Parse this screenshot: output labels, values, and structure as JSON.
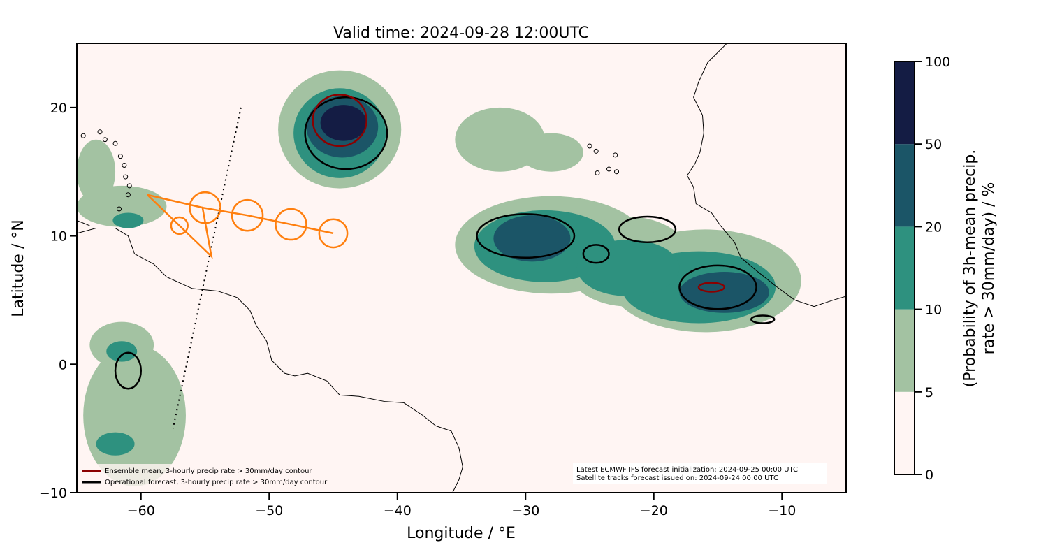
{
  "chart_data": {
    "type": "map",
    "title": "Valid time: 2024-09-28 12:00UTC",
    "xlabel": "Longitude / °E",
    "ylabel": "Latitude / °N",
    "xlim": [
      -65,
      -5
    ],
    "ylim": [
      -10,
      25
    ],
    "xticks": [
      -60,
      -50,
      -40,
      -30,
      -20,
      -10
    ],
    "yticks": [
      -10,
      0,
      10,
      20
    ],
    "colorbar": {
      "label_line1": "(Probability of 3h-mean precip.",
      "label_line2": "rate > 30mm/day) / %",
      "levels": [
        0,
        5,
        10,
        20,
        50,
        100
      ],
      "colors": [
        "#fff5f3",
        "#a3c2a2",
        "#2e917f",
        "#1b5567",
        "#141c44"
      ]
    },
    "probability_regions": [
      {
        "lon": -44.5,
        "lat": 18.3,
        "rx": 4.8,
        "ry": 4.6,
        "level": 1
      },
      {
        "lon": -44.5,
        "lat": 18.0,
        "rx": 3.6,
        "ry": 3.5,
        "level": 2
      },
      {
        "lon": -44.3,
        "lat": 18.5,
        "rx": 2.8,
        "ry": 2.4,
        "level": 3
      },
      {
        "lon": -44.2,
        "lat": 18.8,
        "rx": 1.8,
        "ry": 1.4,
        "level": 4
      },
      {
        "lon": -32,
        "lat": 17.5,
        "rx": 3.5,
        "ry": 2.5,
        "level": 1
      },
      {
        "lon": -28,
        "lat": 16.5,
        "rx": 2.5,
        "ry": 1.5,
        "level": 1
      },
      {
        "lon": -28,
        "lat": 9.3,
        "rx": 7.5,
        "ry": 3.8,
        "level": 1
      },
      {
        "lon": -16,
        "lat": 6.5,
        "rx": 7.5,
        "ry": 4.0,
        "level": 1
      },
      {
        "lon": -22,
        "lat": 8,
        "rx": 5,
        "ry": 3.5,
        "level": 1
      },
      {
        "lon": -28.5,
        "lat": 9.2,
        "rx": 5.5,
        "ry": 2.8,
        "level": 2
      },
      {
        "lon": -16.5,
        "lat": 6,
        "rx": 6,
        "ry": 2.8,
        "level": 2
      },
      {
        "lon": -22,
        "lat": 7.5,
        "rx": 4,
        "ry": 2.2,
        "level": 2
      },
      {
        "lon": -29.5,
        "lat": 9.8,
        "rx": 3,
        "ry": 1.8,
        "level": 3
      },
      {
        "lon": -14.5,
        "lat": 5.6,
        "rx": 3.5,
        "ry": 1.6,
        "level": 3
      },
      {
        "lon": -61.5,
        "lat": 12.3,
        "rx": 3.5,
        "ry": 1.6,
        "level": 1
      },
      {
        "lon": -61,
        "lat": 11.2,
        "rx": 1.2,
        "ry": 0.6,
        "level": 2
      },
      {
        "lon": -60.5,
        "lat": -4,
        "rx": 4,
        "ry": 5.5,
        "level": 1
      },
      {
        "lon": -61.5,
        "lat": 1.5,
        "rx": 2.5,
        "ry": 1.8,
        "level": 1
      },
      {
        "lon": -61.5,
        "lat": 1,
        "rx": 1.2,
        "ry": 0.8,
        "level": 2
      },
      {
        "lon": -62,
        "lat": -6.2,
        "rx": 1.5,
        "ry": 0.9,
        "level": 2
      },
      {
        "lon": -63.5,
        "lat": 15,
        "rx": 1.5,
        "ry": 2.5,
        "level": 1
      }
    ],
    "operational_contours": [
      {
        "lon": -44,
        "lat": 18,
        "rx": 3.2,
        "ry": 2.8
      },
      {
        "lon": -30,
        "lat": 10,
        "rx": 3.8,
        "ry": 1.7
      },
      {
        "lon": -15,
        "lat": 6,
        "rx": 3,
        "ry": 1.7
      },
      {
        "lon": -20.5,
        "lat": 10.5,
        "rx": 2.2,
        "ry": 1
      },
      {
        "lon": -24.5,
        "lat": 8.6,
        "rx": 1,
        "ry": 0.7
      },
      {
        "lon": -61,
        "lat": -0.5,
        "rx": 1,
        "ry": 1.4
      },
      {
        "lon": -11.5,
        "lat": 3.5,
        "rx": 0.9,
        "ry": 0.3
      }
    ],
    "ensemble_contours": [
      {
        "lon": -44.5,
        "lat": 19,
        "rx": 2.1,
        "ry": 2
      },
      {
        "lon": -15.5,
        "lat": 6,
        "rx": 1,
        "ry": 0.35
      }
    ],
    "storm_track": {
      "color": "#ff7f0e",
      "line": [
        [
          -59.5,
          13.2
        ],
        [
          -54.5,
          8.4
        ],
        [
          -55.2,
          12.2
        ],
        [
          -51.7,
          11.6
        ],
        [
          -48.3,
          10.9
        ],
        [
          -45,
          10.2
        ]
      ],
      "triangle_top": [
        [
          -59.5,
          13.2
        ],
        [
          -55.2,
          12.2
        ]
      ],
      "circles": [
        {
          "lon": -57,
          "lat": 10.8,
          "r": 0.65
        },
        {
          "lon": -55,
          "lat": 12.2,
          "r": 1.2
        },
        {
          "lon": -51.7,
          "lat": 11.6,
          "r": 1.2
        },
        {
          "lon": -48.3,
          "lat": 10.9,
          "r": 1.2
        },
        {
          "lon": -45,
          "lat": 10.2,
          "r": 1.1
        }
      ]
    },
    "satellite_track": [
      [
        -52.2,
        20
      ],
      [
        -57.5,
        -5
      ]
    ],
    "legend": {
      "placement": "bottom-left",
      "entries": [
        {
          "label": "Ensemble mean, 3-hourly precip rate > 30mm/day contour",
          "color": "#8b0000"
        },
        {
          "label": "Operational forecast, 3-hourly precip rate > 30mm/day contour",
          "color": "#000000"
        }
      ]
    },
    "annotation": {
      "line1": "Latest ECMWF IFS forecast initialization: 2024-09-25 00:00 UTC",
      "line2": "Satellite tracks forecast issued on: 2024-09-24 00:00 UTC"
    }
  }
}
